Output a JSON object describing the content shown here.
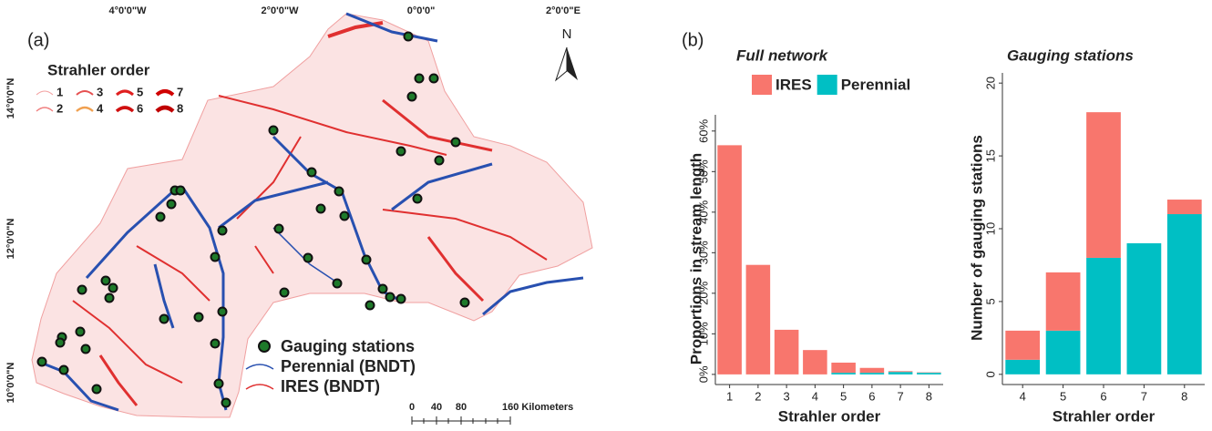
{
  "map": {
    "panel_label": "(a)",
    "lon_labels": [
      "4°0'0\"W",
      "2°0'0\"W",
      "0°0'0\"",
      "2°0'0\"E"
    ],
    "lat_labels": [
      "14°0'0\"N",
      "12°0'0\"N",
      "10°0'0\"N"
    ],
    "north": "N",
    "legend_title": "Strahler order",
    "strahler_levels": [
      "1",
      "2",
      "3",
      "4",
      "5",
      "6",
      "7",
      "8"
    ],
    "legend_items": [
      "Gauging stations",
      "Perennial (BNDT)",
      "IRES (BNDT)"
    ],
    "scale_labels": [
      "0",
      "40",
      "80",
      "160 Kilometers"
    ]
  },
  "panel_b_label": "(b)",
  "chart_data": [
    {
      "type": "bar",
      "stacked": true,
      "title": "Full network",
      "x_label": "Strahler order",
      "y_label": "Proportions in stream length",
      "categories": [
        "1",
        "2",
        "3",
        "4",
        "5",
        "6",
        "7",
        "8"
      ],
      "series": [
        {
          "name": "IRES",
          "color": "#f8766d",
          "values": [
            56.5,
            27,
            11,
            6,
            2.5,
            1.2,
            0.2,
            0.1
          ]
        },
        {
          "name": "Perennial",
          "color": "#00bfc4",
          "values": [
            0,
            0,
            0,
            0,
            0.4,
            0.4,
            0.6,
            0.4
          ]
        }
      ],
      "ylim": [
        -2.5,
        64
      ],
      "yticks": [
        {
          "value": 0,
          "label": "0%"
        },
        {
          "value": 10,
          "label": "10%"
        },
        {
          "value": 20,
          "label": "20%"
        },
        {
          "value": 30,
          "label": "30%"
        },
        {
          "value": 40,
          "label": "40%"
        },
        {
          "value": 50,
          "label": "50%"
        },
        {
          "value": 60,
          "label": "60%"
        }
      ],
      "legend": "top"
    },
    {
      "type": "bar",
      "stacked": true,
      "title": "Gauging stations",
      "x_label": "Strahler order",
      "y_label": "Number of gauging stations",
      "categories": [
        "4",
        "5",
        "6",
        "7",
        "8"
      ],
      "series": [
        {
          "color": "#f8766d",
          "values": [
            2,
            4,
            10,
            0,
            1
          ]
        },
        {
          "color": "#00bfc4",
          "values": [
            1,
            3,
            8,
            9,
            11
          ]
        }
      ],
      "ylim": [
        -0.7,
        20.7
      ],
      "yticks": [
        0,
        5,
        10,
        15,
        20
      ]
    }
  ]
}
